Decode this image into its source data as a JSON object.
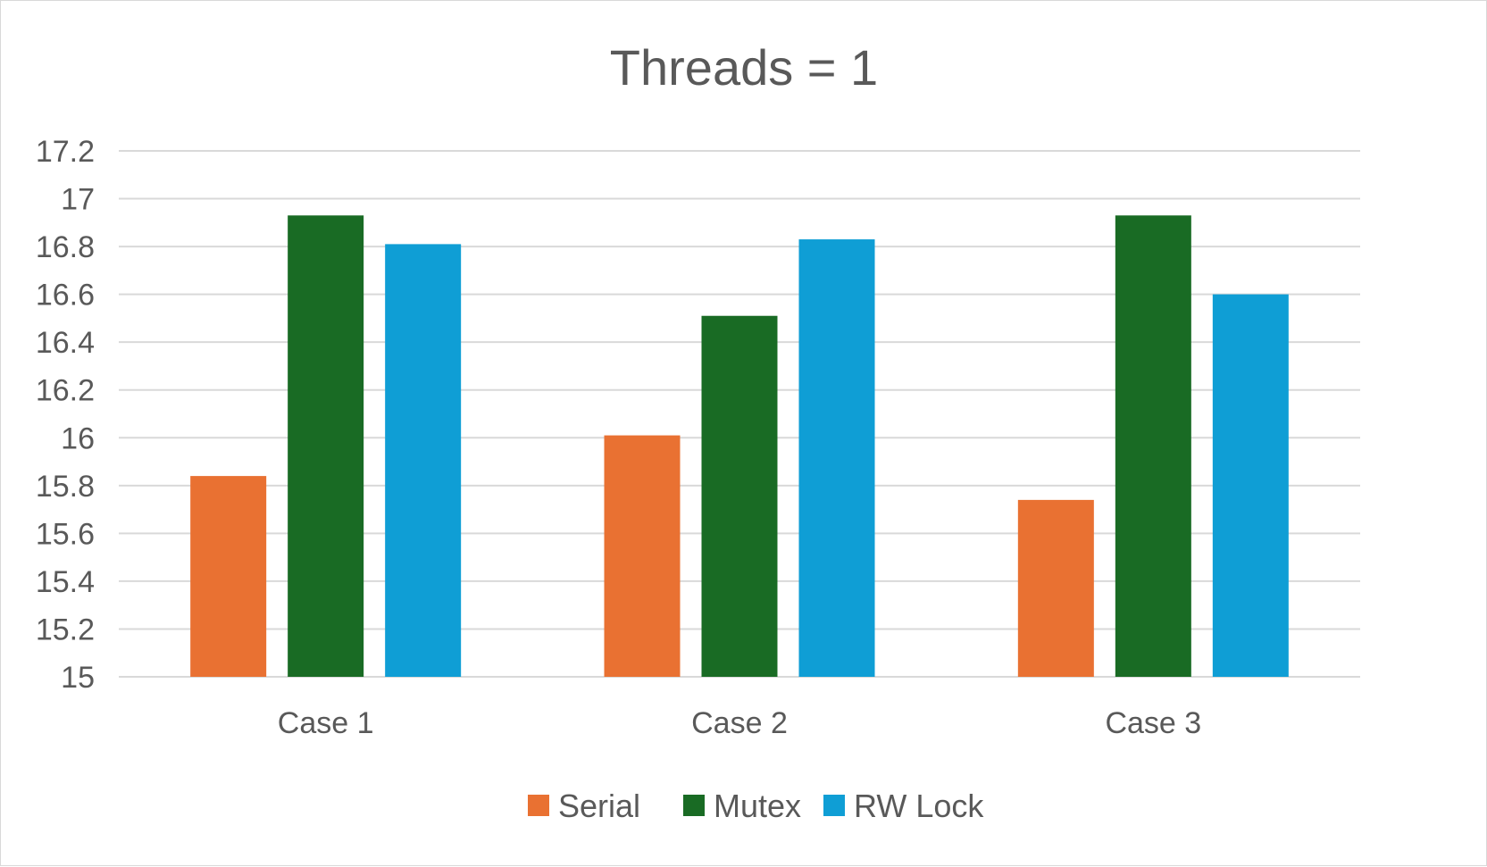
{
  "chart_data": {
    "type": "bar",
    "title": "Threads = 1",
    "categories": [
      "Case 1",
      "Case 2",
      "Case 3"
    ],
    "series": [
      {
        "name": "Serial",
        "color": "#e97132",
        "values": [
          15.84,
          16.01,
          15.74
        ]
      },
      {
        "name": "Mutex",
        "color": "#196b24",
        "values": [
          16.93,
          16.51,
          16.93
        ]
      },
      {
        "name": "RW Lock",
        "color": "#0f9ed5",
        "values": [
          16.81,
          16.83,
          16.6
        ]
      }
    ],
    "ylim": [
      15,
      17.2
    ],
    "yticks": [
      "15",
      "15.2",
      "15.4",
      "15.6",
      "15.8",
      "16",
      "16.2",
      "16.4",
      "16.6",
      "16.8",
      "17",
      "17.2"
    ],
    "grid": true,
    "legend_position": "bottom",
    "xlabel": "",
    "ylabel": ""
  }
}
